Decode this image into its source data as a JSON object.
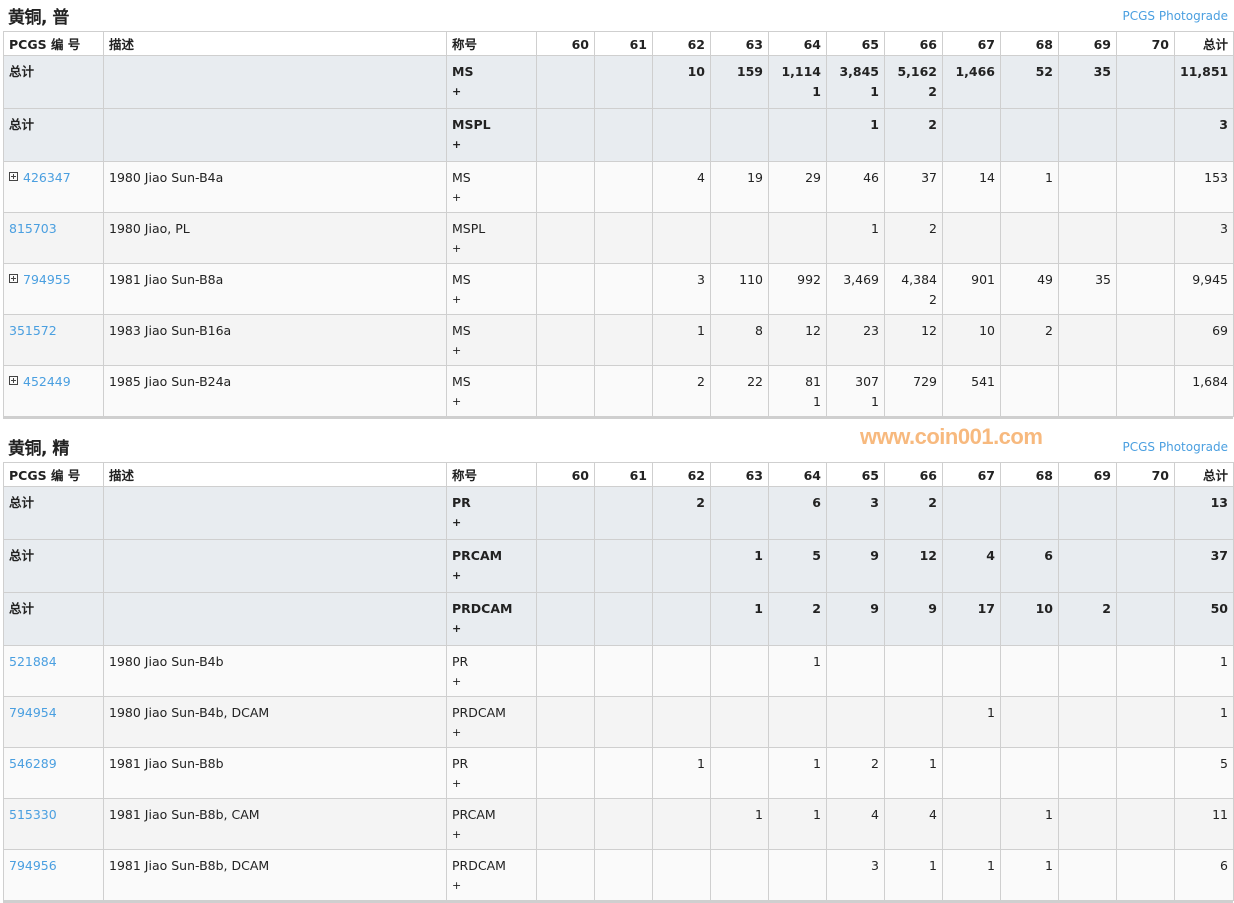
{
  "grades": [
    "60",
    "61",
    "62",
    "63",
    "64",
    "65",
    "66",
    "67",
    "68",
    "69",
    "70"
  ],
  "columns": {
    "pcgs": "PCGS 编 号",
    "desc": "描述",
    "designation": "称号",
    "total": "总计"
  },
  "photograde_link": "PCGS Photograde",
  "colors": {
    "link": "#4a9fe0",
    "total_row_bg": "#e8ecf0",
    "watermark": "#f7b271"
  },
  "sections": [
    {
      "title": "黄铜, 普",
      "rows": [
        {
          "type": "total",
          "id": "总计",
          "desc": "",
          "des": "MS",
          "plus": "+",
          "g": {
            "62": "10",
            "63": "159",
            "64": "1,114",
            "65": "3,845",
            "66": "5,162",
            "67": "1,466",
            "68": "52",
            "69": "35"
          },
          "p": {
            "64": "1",
            "65": "1",
            "66": "2"
          },
          "total": "11,851"
        },
        {
          "type": "total",
          "id": "总计",
          "desc": "",
          "des": "MSPL",
          "plus": "+",
          "g": {
            "65": "1",
            "66": "2"
          },
          "p": {},
          "total": "3"
        },
        {
          "type": "data",
          "id": "426347",
          "expand": true,
          "desc": "1980 Jiao Sun-B4a",
          "des": "MS",
          "plus": "+",
          "g": {
            "62": "4",
            "63": "19",
            "64": "29",
            "65": "46",
            "66": "37",
            "67": "14",
            "68": "1"
          },
          "p": {},
          "total": "153"
        },
        {
          "type": "data",
          "id": "815703",
          "expand": false,
          "desc": "1980 Jiao, PL",
          "des": "MSPL",
          "plus": "+",
          "g": {
            "65": "1",
            "66": "2"
          },
          "p": {},
          "total": "3"
        },
        {
          "type": "data",
          "id": "794955",
          "expand": true,
          "desc": "1981 Jiao Sun-B8a",
          "des": "MS",
          "plus": "+",
          "g": {
            "62": "3",
            "63": "110",
            "64": "992",
            "65": "3,469",
            "66": "4,384",
            "67": "901",
            "68": "49",
            "69": "35"
          },
          "p": {
            "66": "2"
          },
          "total": "9,945"
        },
        {
          "type": "data",
          "id": "351572",
          "expand": false,
          "desc": "1983 Jiao Sun-B16a",
          "des": "MS",
          "plus": "+",
          "g": {
            "62": "1",
            "63": "8",
            "64": "12",
            "65": "23",
            "66": "12",
            "67": "10",
            "68": "2"
          },
          "p": {},
          "total": "69"
        },
        {
          "type": "data",
          "id": "452449",
          "expand": true,
          "desc": "1985 Jiao Sun-B24a",
          "des": "MS",
          "plus": "+",
          "g": {
            "62": "2",
            "63": "22",
            "64": "81",
            "65": "307",
            "66": "729",
            "67": "541"
          },
          "p": {
            "64": "1",
            "65": "1"
          },
          "total": "1,684"
        }
      ]
    },
    {
      "title": "黄铜, 精",
      "rows": [
        {
          "type": "total",
          "id": "总计",
          "desc": "",
          "des": "PR",
          "plus": "+",
          "g": {
            "62": "2",
            "64": "6",
            "65": "3",
            "66": "2"
          },
          "p": {},
          "total": "13"
        },
        {
          "type": "total",
          "id": "总计",
          "desc": "",
          "des": "PRCAM",
          "plus": "+",
          "g": {
            "63": "1",
            "64": "5",
            "65": "9",
            "66": "12",
            "67": "4",
            "68": "6"
          },
          "p": {},
          "total": "37"
        },
        {
          "type": "total",
          "id": "总计",
          "desc": "",
          "des": "PRDCAM",
          "plus": "+",
          "g": {
            "63": "1",
            "64": "2",
            "65": "9",
            "66": "9",
            "67": "17",
            "68": "10",
            "69": "2"
          },
          "p": {},
          "total": "50"
        },
        {
          "type": "data",
          "id": "521884",
          "expand": false,
          "desc": "1980 Jiao Sun-B4b",
          "des": "PR",
          "plus": "+",
          "g": {
            "64": "1"
          },
          "p": {},
          "total": "1"
        },
        {
          "type": "data",
          "id": "794954",
          "expand": false,
          "desc": "1980 Jiao Sun-B4b, DCAM",
          "des": "PRDCAM",
          "plus": "+",
          "g": {
            "67": "1"
          },
          "p": {},
          "total": "1"
        },
        {
          "type": "data",
          "id": "546289",
          "expand": false,
          "desc": "1981 Jiao Sun-B8b",
          "des": "PR",
          "plus": "+",
          "g": {
            "62": "1",
            "64": "1",
            "65": "2",
            "66": "1"
          },
          "p": {},
          "total": "5"
        },
        {
          "type": "data",
          "id": "515330",
          "expand": false,
          "desc": "1981 Jiao Sun-B8b, CAM",
          "des": "PRCAM",
          "plus": "+",
          "g": {
            "63": "1",
            "64": "1",
            "65": "4",
            "66": "4",
            "68": "1"
          },
          "p": {},
          "total": "11"
        },
        {
          "type": "data",
          "id": "794956",
          "expand": false,
          "desc": "1981 Jiao Sun-B8b, DCAM",
          "des": "PRDCAM",
          "plus": "+",
          "g": {
            "65": "3",
            "66": "1",
            "67": "1",
            "68": "1"
          },
          "p": {},
          "total": "6"
        }
      ]
    }
  ],
  "watermark": "www.coin001.com"
}
